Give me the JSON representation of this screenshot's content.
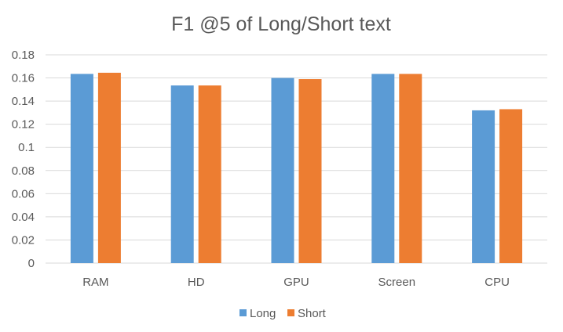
{
  "chart_data": {
    "type": "bar",
    "title": "F1 @5 of Long/Short text",
    "xlabel": "",
    "ylabel": "",
    "categories": [
      "RAM",
      "HD",
      "GPU",
      "Screen",
      "CPU"
    ],
    "series": [
      {
        "name": "Long",
        "color": "#5b9bd5",
        "values": [
          0.1635,
          0.1535,
          0.16,
          0.1635,
          0.132
        ]
      },
      {
        "name": "Short",
        "color": "#ed7d31",
        "values": [
          0.1645,
          0.1535,
          0.159,
          0.1635,
          0.133
        ]
      }
    ],
    "ylim": [
      0,
      0.18
    ],
    "yticks": [
      "0",
      "0.02",
      "0.04",
      "0.06",
      "0.08",
      "0.1",
      "0.12",
      "0.14",
      "0.16",
      "0.18"
    ],
    "grid": true,
    "legend_position": "bottom"
  }
}
